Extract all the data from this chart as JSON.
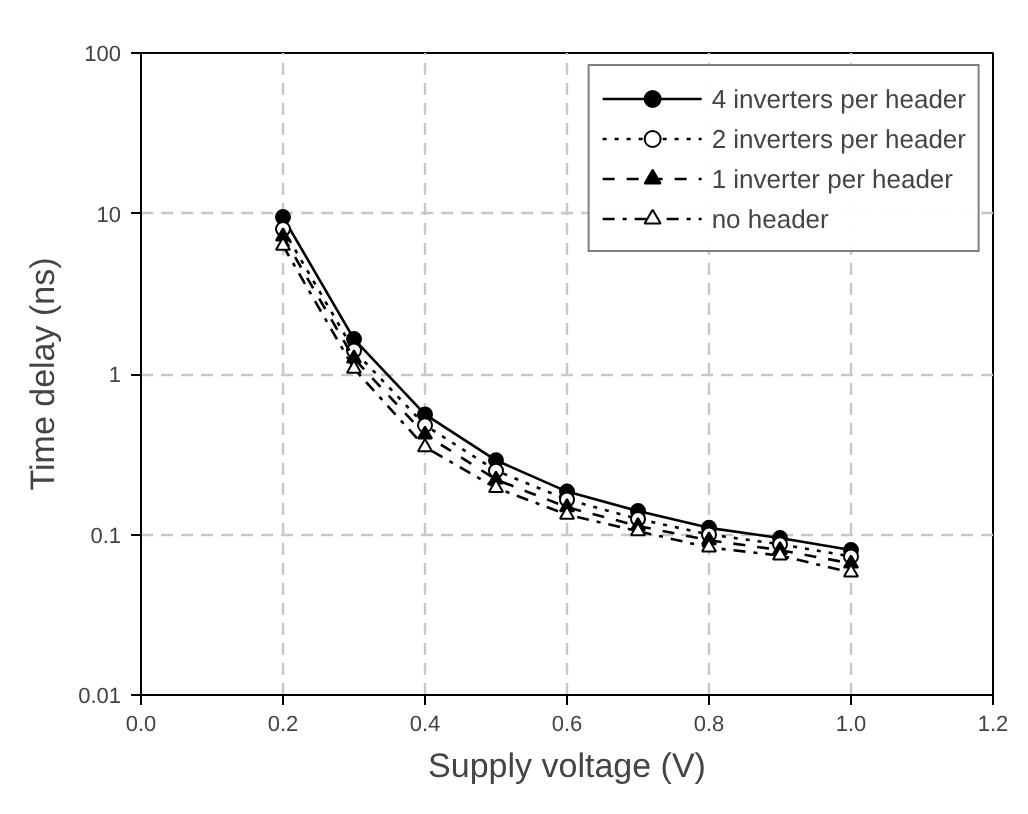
{
  "chart_data": {
    "type": "line",
    "xlabel": "Supply voltage (V)",
    "ylabel": "Time delay (ns)",
    "x": [
      0.2,
      0.3,
      0.4,
      0.5,
      0.6,
      0.7,
      0.8,
      0.9,
      1.0
    ],
    "series": [
      {
        "name": "4 inverters per header",
        "color": "#000000",
        "marker": "circle",
        "line_style": "solid",
        "values": [
          9.5,
          1.65,
          0.56,
          0.29,
          0.185,
          0.14,
          0.11,
          0.095,
          0.08
        ]
      },
      {
        "name": "2 inverters per header",
        "color": "#000000",
        "marker": "circle_open",
        "line_style": "dotted",
        "values": [
          8.0,
          1.4,
          0.48,
          0.25,
          0.165,
          0.125,
          0.1,
          0.087,
          0.073
        ]
      },
      {
        "name": "1 inverter per header",
        "color": "#000000",
        "marker": "triangle",
        "line_style": "dashed",
        "values": [
          7.2,
          1.25,
          0.42,
          0.22,
          0.148,
          0.113,
          0.092,
          0.08,
          0.066
        ]
      },
      {
        "name": "no header",
        "color": "#000000",
        "marker": "triangle_open",
        "line_style": "dashdot",
        "values": [
          6.3,
          1.08,
          0.35,
          0.195,
          0.133,
          0.105,
          0.083,
          0.074,
          0.058
        ]
      }
    ],
    "xlim": [
      0.0,
      1.2
    ],
    "ylim": [
      0.01,
      100
    ],
    "xticks": [
      {
        "value": 0,
        "label": "0.0"
      },
      0.2,
      0.4,
      0.6,
      0.8,
      {
        "value": 1,
        "label": "1.0"
      },
      1.2
    ],
    "yticks": [
      0.01,
      0.1,
      1,
      10,
      100
    ],
    "log": true,
    "grid": true,
    "legend": "top right"
  }
}
